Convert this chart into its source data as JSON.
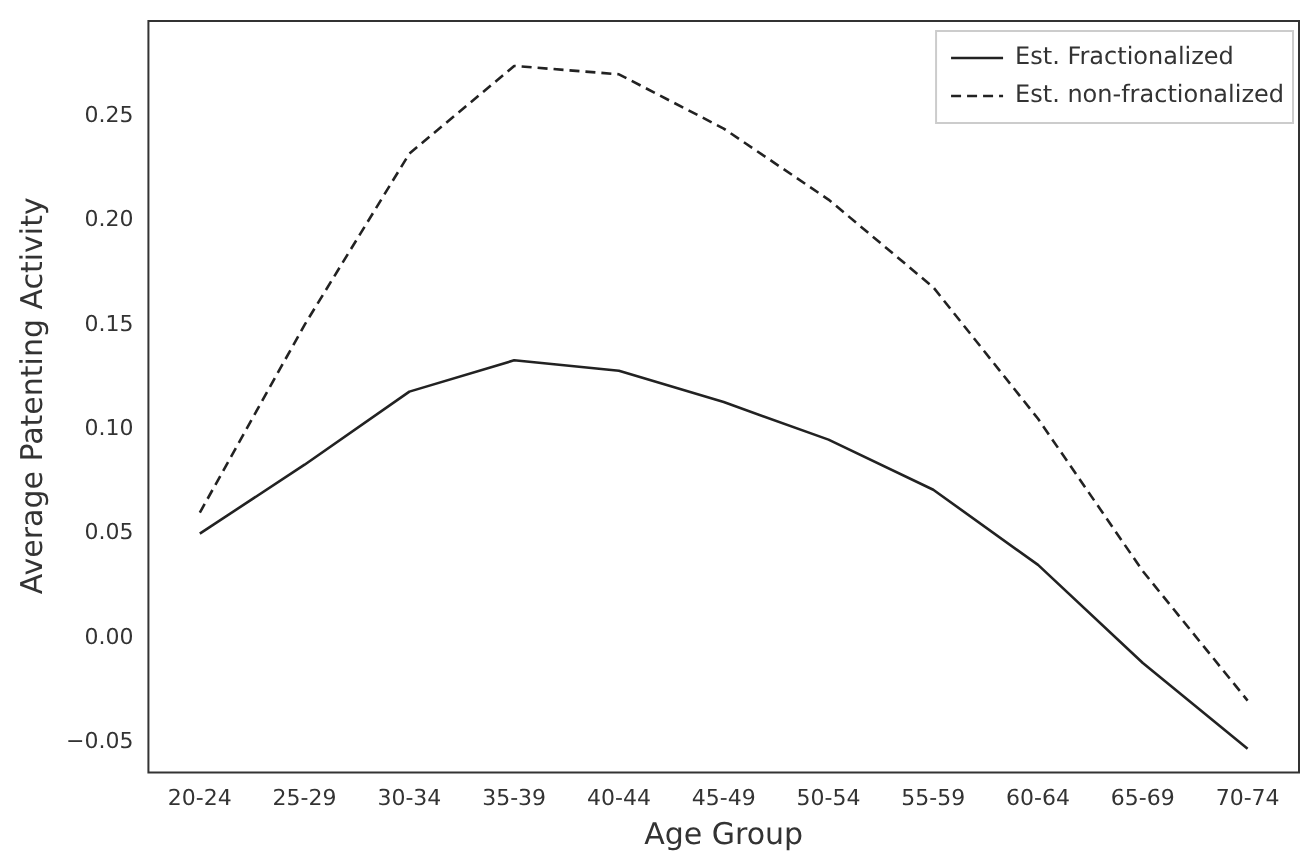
{
  "chart_data": {
    "type": "line",
    "xlabel": "Age Group",
    "ylabel": "Average Patenting Activity",
    "categories": [
      "20-24",
      "25-29",
      "30-34",
      "35-39",
      "40-44",
      "45-49",
      "50-54",
      "55-59",
      "60-64",
      "65-69",
      "70-74"
    ],
    "series": [
      {
        "name": "Est. Fractionalized",
        "color": "#222222",
        "line_style": "solid",
        "values": [
          0.05,
          0.083,
          0.118,
          0.133,
          0.128,
          0.113,
          0.095,
          0.071,
          0.035,
          -0.012,
          -0.053
        ]
      },
      {
        "name": "Est. non-fractionalized",
        "color": "#222222",
        "line_style": "dashed",
        "values": [
          0.06,
          0.15,
          0.232,
          0.274,
          0.27,
          0.244,
          0.21,
          0.168,
          0.105,
          0.032,
          -0.03
        ]
      }
    ],
    "ylim": [
      -0.064,
      0.296
    ],
    "yticks": [
      {
        "value": -0.05,
        "label": "−0.05"
      },
      {
        "value": 0,
        "label": "0.00"
      },
      {
        "value": 0.05,
        "label": "0.05"
      },
      {
        "value": 0.1,
        "label": "0.10"
      },
      {
        "value": 0.15,
        "label": "0.15"
      },
      {
        "value": 0.2,
        "label": "0.20"
      },
      {
        "value": 0.25,
        "label": "0.25"
      }
    ],
    "grid": false,
    "legend": "top right",
    "marker": "none"
  }
}
